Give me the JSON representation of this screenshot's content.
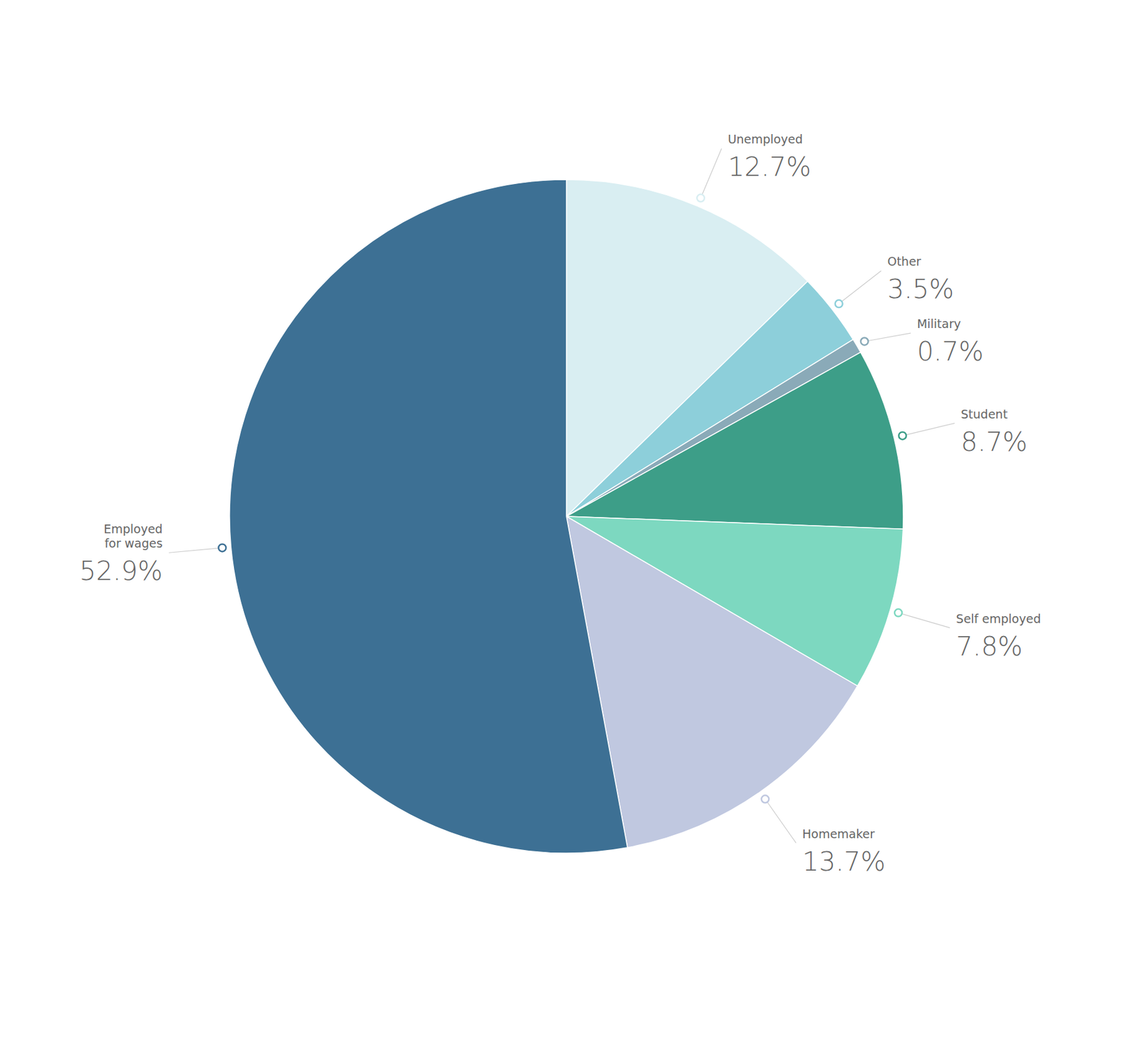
{
  "chart_data": {
    "type": "pie",
    "categories": [
      "Unemployed",
      "Other",
      "Military",
      "Student",
      "Self employed",
      "Homemaker",
      "Employed\nfor wages"
    ],
    "values": [
      12.7,
      3.5,
      0.7,
      8.7,
      7.8,
      13.7,
      52.9
    ],
    "value_labels": [
      "12.7%",
      "3.5%",
      "0.7%",
      "8.7%",
      "7.8%",
      "13.7%",
      "52.9%"
    ],
    "colors": [
      "#d9eef2",
      "#8dcfda",
      "#8aaab8",
      "#3d9e88",
      "#7dd8c0",
      "#c0c8e0",
      "#3d7094"
    ],
    "data_labels": true
  }
}
